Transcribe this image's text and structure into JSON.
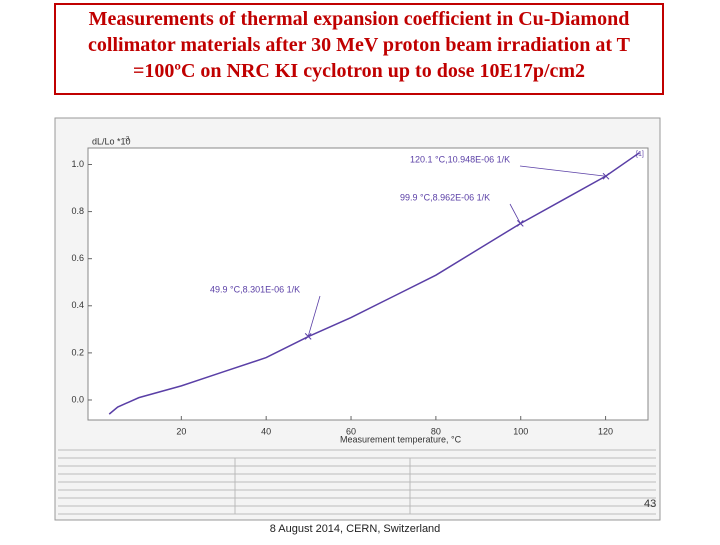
{
  "chart_data": {
    "type": "line",
    "title": "Measurements of thermal expansion coefficient in Cu-Diamond collimator materials after 30 MeV proton beam irradiation at T =100ºC on NRC KI cyclotron up to dose 10E17p/cm2",
    "x_label": "Measurement temperature,  °C",
    "y_label": "dL/Lo *10",
    "y_label_exponent": "-3",
    "curve_label": "[1]",
    "series": [
      {
        "name": "Cu-Diamond",
        "color": "#5a3fa6",
        "x": [
          3,
          5,
          10,
          20,
          30,
          40,
          50,
          60,
          70,
          80,
          90,
          100,
          110,
          120,
          128
        ],
        "values": [
          -0.06,
          -0.03,
          0.01,
          0.06,
          0.12,
          0.18,
          0.27,
          0.35,
          0.44,
          0.53,
          0.64,
          0.75,
          0.85,
          0.95,
          1.05
        ]
      }
    ],
    "annotations": [
      {
        "text": "120.1 °C,10.948E-06 1/K",
        "x": 120.1,
        "y": 0.95
      },
      {
        "text": "99.9 °C,8.962E-06 1/K",
        "x": 99.9,
        "y": 0.75
      },
      {
        "text": "49.9 °C,8.301E-06 1/K",
        "x": 49.9,
        "y": 0.27
      }
    ],
    "xlim": [
      -2,
      130
    ],
    "ylim": [
      -0.085,
      1.07
    ],
    "xticks": [
      20,
      40,
      60,
      80,
      100,
      120
    ],
    "yticks": [
      {
        "value": 0,
        "label": "0.0"
      },
      0.2,
      0.4,
      0.6,
      0.8,
      {
        "value": 1,
        "label": "1.0"
      }
    ],
    "grid": false
  },
  "footer": "8 August 2014, CERN, Switzerland",
  "page_number": "43"
}
